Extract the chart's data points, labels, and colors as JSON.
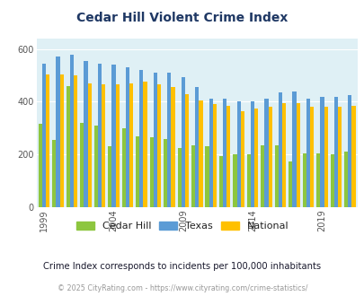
{
  "title": "Cedar Hill Violent Crime Index",
  "years": [
    1999,
    2000,
    2001,
    2002,
    2003,
    2004,
    2005,
    2006,
    2007,
    2008,
    2009,
    2010,
    2011,
    2012,
    2013,
    2014,
    2015,
    2016,
    2017,
    2018,
    2019,
    2020,
    2021
  ],
  "cedar_hill": [
    315,
    255,
    460,
    320,
    310,
    230,
    300,
    270,
    265,
    260,
    225,
    235,
    230,
    195,
    200,
    200,
    235,
    235,
    175,
    205,
    205,
    200,
    210
  ],
  "texas": [
    545,
    570,
    580,
    555,
    545,
    540,
    530,
    520,
    510,
    510,
    495,
    455,
    410,
    410,
    400,
    400,
    410,
    435,
    440,
    410,
    420,
    420,
    425
  ],
  "national": [
    505,
    505,
    500,
    470,
    465,
    465,
    470,
    475,
    465,
    455,
    430,
    405,
    390,
    385,
    365,
    375,
    380,
    395,
    395,
    380,
    380,
    380,
    385
  ],
  "cedar_hill_color": "#8dc63f",
  "texas_color": "#5b9bd5",
  "national_color": "#ffc000",
  "bg_color": "#dff0f5",
  "title_color": "#1f3864",
  "subtitle": "Crime Index corresponds to incidents per 100,000 inhabitants",
  "footer": "© 2025 CityRating.com - https://www.cityrating.com/crime-statistics/",
  "yticks": [
    0,
    200,
    400,
    600
  ],
  "xtick_labels": [
    "1999",
    "2004",
    "2009",
    "2014",
    "2019"
  ],
  "xtick_positions": [
    0,
    5,
    10,
    15,
    20
  ],
  "ylim": [
    0,
    640
  ],
  "legend_labels": [
    "Cedar Hill",
    "Texas",
    "National"
  ]
}
